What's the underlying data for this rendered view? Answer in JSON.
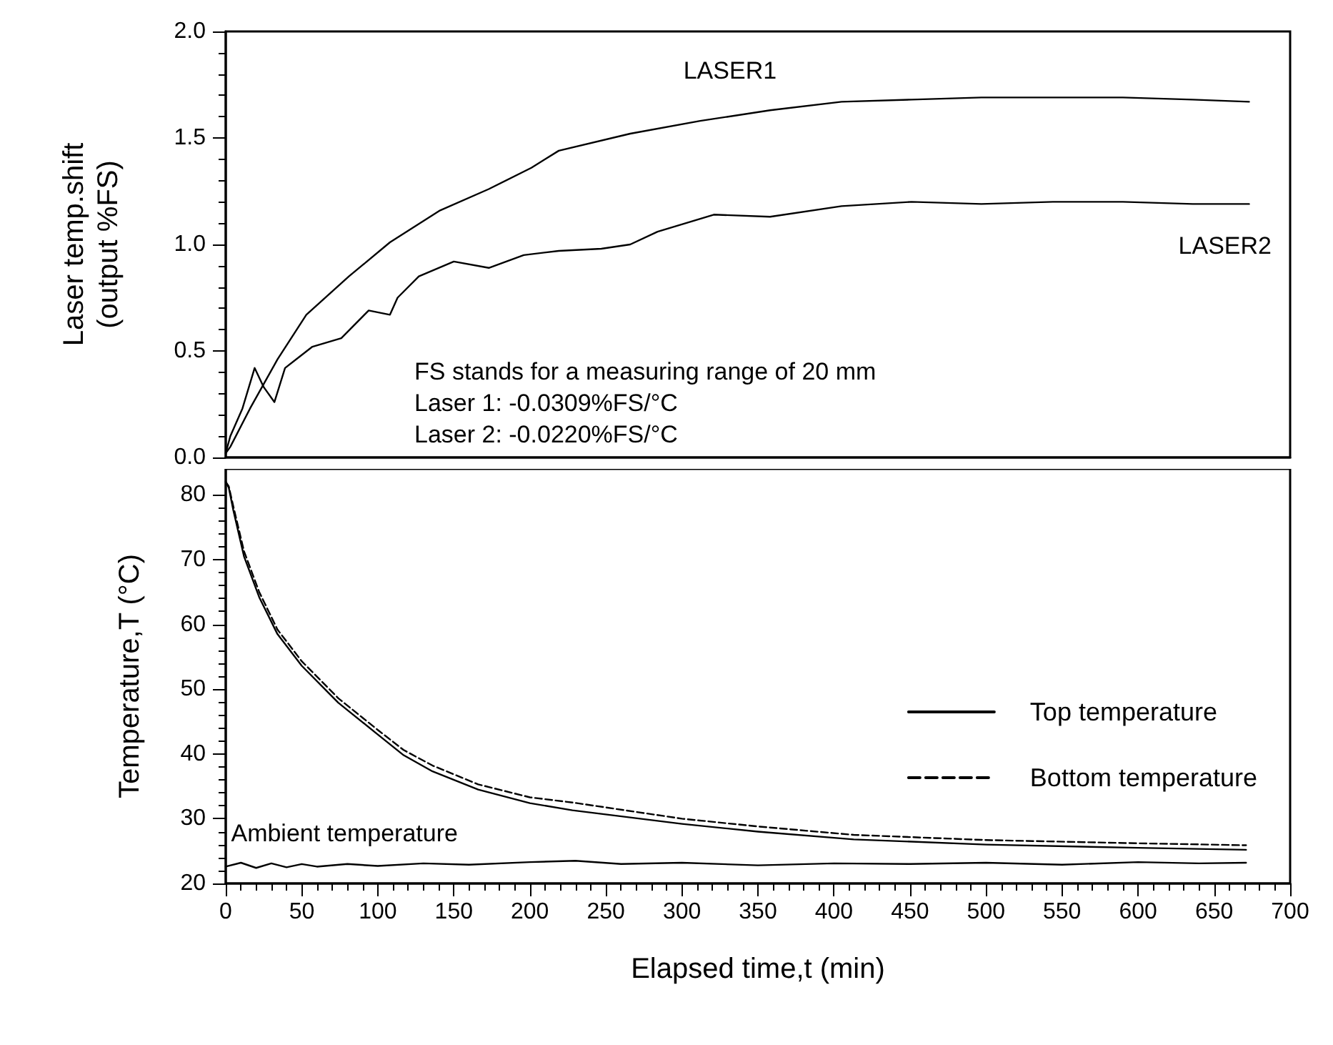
{
  "chart_data": [
    {
      "type": "line",
      "ylabel": "Laser temp.shift\n(output %FS)",
      "xlim": [
        0,
        700
      ],
      "ylim": [
        0,
        2
      ],
      "yticks": [
        {
          "value": 0,
          "label": "0.0"
        },
        {
          "value": 0.5,
          "label": "0.5"
        },
        {
          "value": 1,
          "label": "1.0"
        },
        {
          "value": 1.5,
          "label": "1.5"
        },
        {
          "value": 2,
          "label": "2.0"
        }
      ],
      "tick_labels": "y",
      "grid": false,
      "legend": false,
      "marker": "none",
      "series": [
        {
          "color": "#000000",
          "line_style": "solid",
          "x": [
            0,
            3,
            16,
            34,
            53,
            81,
            108,
            141,
            173,
            201,
            219,
            266,
            312,
            358,
            405,
            451,
            497,
            544,
            590,
            636,
            673
          ],
          "values": [
            0.02,
            0.05,
            0.23,
            0.46,
            0.67,
            0.85,
            1.01,
            1.16,
            1.26,
            1.36,
            1.44,
            1.52,
            1.58,
            1.63,
            1.67,
            1.68,
            1.69,
            1.69,
            1.69,
            1.68,
            1.67
          ]
        },
        {
          "color": "#000000",
          "line_style": "solid",
          "x": [
            0,
            3,
            11,
            19,
            25,
            32,
            39,
            57,
            76,
            94,
            108,
            113,
            127,
            150,
            173,
            196,
            219,
            247,
            266,
            284,
            321,
            358,
            405,
            451,
            497,
            544,
            590,
            636,
            673
          ],
          "values": [
            0.02,
            0.1,
            0.23,
            0.42,
            0.33,
            0.26,
            0.42,
            0.52,
            0.56,
            0.69,
            0.67,
            0.75,
            0.85,
            0.92,
            0.89,
            0.95,
            0.97,
            0.98,
            1.0,
            1.06,
            1.14,
            1.13,
            1.18,
            1.2,
            1.19,
            1.2,
            1.2,
            1.19,
            1.19
          ]
        }
      ],
      "annotations": [
        "LASER1",
        "LASER2",
        "FS stands for a measuring range of 20 mm",
        "Laser 1: -0.0309%FS/°C",
        "Laser 2: -0.0220%FS/°C"
      ]
    },
    {
      "type": "line",
      "xlabel": "Elapsed time,t (min)",
      "ylabel": "Temperature,T (°C)",
      "xlim": [
        0,
        700
      ],
      "ylim": [
        20,
        84
      ],
      "xticks": [
        0,
        50,
        100,
        150,
        200,
        250,
        300,
        350,
        400,
        450,
        500,
        550,
        600,
        650,
        700
      ],
      "yticks": [
        20,
        30,
        40,
        50,
        60,
        70,
        80
      ],
      "grid": false,
      "legend": "bottom right",
      "marker": "none",
      "series": [
        {
          "name": "Top temperature",
          "color": "#000000",
          "line_style": "solid",
          "x": [
            0,
            2,
            5,
            12,
            22,
            34,
            50,
            74,
            100,
            117,
            136,
            166,
            200,
            228,
            300,
            350,
            413,
            500,
            600,
            671
          ],
          "values": [
            82,
            81.1,
            77.6,
            70.5,
            64.2,
            58.5,
            53.6,
            47.9,
            43,
            39.8,
            37.3,
            34.5,
            32.4,
            31.3,
            29.2,
            28,
            26.8,
            26,
            25.5,
            25.2
          ]
        },
        {
          "name": "Bottom temperature",
          "color": "#000000",
          "line_style": "dashed",
          "x": [
            0,
            2,
            5,
            12,
            22,
            34,
            50,
            74,
            100,
            117,
            136,
            166,
            200,
            228,
            300,
            350,
            413,
            500,
            600,
            671
          ],
          "values": [
            82,
            81.3,
            78.2,
            71.3,
            65,
            59.2,
            54.3,
            48.6,
            43.7,
            40.6,
            38.2,
            35.3,
            33.3,
            32.5,
            30,
            28.8,
            27.5,
            26.7,
            26.2,
            25.9
          ]
        },
        {
          "color": "#000000",
          "line_style": "solid",
          "x": [
            0,
            10,
            20,
            30,
            40,
            50,
            60,
            80,
            100,
            130,
            160,
            200,
            230,
            260,
            300,
            350,
            400,
            450,
            500,
            550,
            600,
            640,
            671
          ],
          "values": [
            22.6,
            23.2,
            22.4,
            23.1,
            22.5,
            23.0,
            22.6,
            23.0,
            22.7,
            23.1,
            22.9,
            23.3,
            23.5,
            23.0,
            23.2,
            22.8,
            23.1,
            23.0,
            23.2,
            22.9,
            23.3,
            23.1,
            23.2
          ]
        }
      ],
      "annotations": [
        "Ambient temperature"
      ]
    }
  ]
}
